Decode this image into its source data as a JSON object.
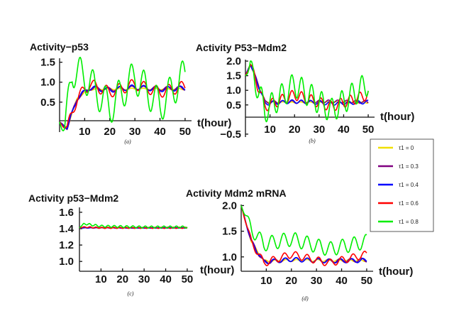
{
  "series_meta": [
    {
      "key": "t0",
      "label": "τ1 = 0",
      "color": "#f0e000"
    },
    {
      "key": "t03",
      "label": "τ1 = 0.3",
      "color": "#800080"
    },
    {
      "key": "t04",
      "label": "τ1 = 0.4",
      "color": "#0000ff"
    },
    {
      "key": "t06",
      "label": "τ1 = 0.6",
      "color": "#ff0000"
    },
    {
      "key": "t08",
      "label": "τ1 = 0.8",
      "color": "#00ee00"
    }
  ],
  "chart_data": [
    {
      "type": "line",
      "title": "Activity−p53",
      "caption": "(a)",
      "xlabel": "t(hour)",
      "xticks": [
        10,
        20,
        30,
        40,
        50
      ],
      "yticks": [
        0.5,
        1.0,
        1.5
      ],
      "ytick_labels": [
        "0.5",
        "1.0",
        "1.5"
      ],
      "xlim": [
        0,
        52
      ],
      "ylim": [
        -0.25,
        1.6
      ],
      "series": [
        {
          "name": "τ1 = 0",
          "x": [
            0,
            3,
            7,
            12,
            20,
            30,
            40,
            50
          ],
          "values": [
            0.0,
            -0.15,
            0.6,
            0.82,
            0.83,
            0.83,
            0.83,
            0.83
          ]
        },
        {
          "name": "τ1 = 0.3",
          "x": [
            0,
            3,
            7,
            12,
            20,
            30,
            40,
            50
          ],
          "values": [
            0.0,
            -0.15,
            0.6,
            0.85,
            0.82,
            0.86,
            0.84,
            0.85
          ]
        },
        {
          "name": "τ1 = 0.4",
          "x": [
            0,
            3,
            7,
            12,
            20,
            30,
            40,
            50
          ],
          "values": [
            0.0,
            -0.15,
            0.6,
            0.86,
            0.8,
            0.88,
            0.82,
            0.85
          ]
        },
        {
          "name": "τ1 = 0.6",
          "x": [
            0,
            3,
            7,
            12,
            20,
            30,
            40,
            50
          ],
          "values": [
            0.0,
            -0.15,
            0.6,
            0.95,
            0.75,
            0.95,
            0.75,
            0.9
          ]
        },
        {
          "name": "τ1 = 0.8",
          "x": [
            0,
            2,
            5,
            10,
            20,
            30,
            40,
            50
          ],
          "values": [
            0.0,
            -0.2,
            1.3,
            1.15,
            0.35,
            1.15,
            0.4,
            1.2
          ]
        }
      ]
    },
    {
      "type": "line",
      "title": "Activity P53−Mdm2",
      "caption": "(b)",
      "xlabel": "t(hour)",
      "xticks": [
        10,
        20,
        30,
        40,
        50
      ],
      "yticks": [
        -0.5,
        0.5,
        1.0,
        1.5,
        2.0
      ],
      "ytick_labels": [
        "−0.5",
        "0.5",
        "1.0",
        "1.5",
        "2.0"
      ],
      "xlim": [
        0,
        52
      ],
      "ylim": [
        -0.6,
        2.05
      ],
      "series": [
        {
          "name": "τ1 = 0",
          "x": [
            0,
            2,
            8,
            20,
            35,
            50
          ],
          "values": [
            1.5,
            1.9,
            0.6,
            0.58,
            0.6,
            0.58
          ]
        },
        {
          "name": "τ1 = 0.3",
          "x": [
            0,
            2,
            8,
            20,
            35,
            50
          ],
          "values": [
            1.5,
            1.9,
            0.6,
            0.6,
            0.62,
            0.6
          ]
        },
        {
          "name": "τ1 = 0.4",
          "x": [
            0,
            2,
            8,
            20,
            35,
            50
          ],
          "values": [
            1.5,
            1.9,
            0.55,
            0.62,
            0.55,
            0.6
          ]
        },
        {
          "name": "τ1 = 0.6",
          "x": [
            0,
            2,
            8,
            20,
            35,
            50
          ],
          "values": [
            1.5,
            1.9,
            0.45,
            0.85,
            0.45,
            0.85
          ]
        },
        {
          "name": "τ1 = 0.8",
          "x": [
            0,
            2,
            8,
            20,
            35,
            50
          ],
          "values": [
            1.5,
            1.85,
            0.3,
            1.2,
            0.3,
            1.25
          ]
        }
      ]
    },
    {
      "type": "line",
      "title": "Activity p53−Mdm2",
      "caption": "(c)",
      "xlabel": "",
      "xticks": [
        10,
        20,
        30,
        40,
        50
      ],
      "yticks": [
        1.0,
        1.2,
        1.4,
        1.6
      ],
      "ytick_labels": [
        "1.0",
        "1.2",
        "1.4",
        "1.6"
      ],
      "xlim": [
        0,
        52
      ],
      "ylim": [
        0.88,
        1.66
      ],
      "series": [
        {
          "name": "τ1 = 0",
          "x": [
            0,
            2,
            10,
            30,
            50
          ],
          "values": [
            1.41,
            1.41,
            1.41,
            1.41,
            1.41
          ]
        },
        {
          "name": "τ1 = 0.3",
          "x": [
            0,
            2,
            10,
            30,
            50
          ],
          "values": [
            1.41,
            1.41,
            1.41,
            1.41,
            1.41
          ]
        },
        {
          "name": "τ1 = 0.4",
          "x": [
            0,
            2,
            10,
            30,
            50
          ],
          "values": [
            1.41,
            1.41,
            1.41,
            1.41,
            1.41
          ]
        },
        {
          "name": "τ1 = 0.6",
          "x": [
            0,
            2,
            10,
            30,
            50
          ],
          "values": [
            1.41,
            1.42,
            1.41,
            1.41,
            1.41
          ]
        },
        {
          "name": "τ1 = 0.8",
          "x": [
            0,
            2,
            10,
            30,
            50
          ],
          "values": [
            1.41,
            1.46,
            1.43,
            1.42,
            1.42
          ]
        }
      ]
    },
    {
      "type": "line",
      "title": "Activity Mdm2 mRNA",
      "caption": "(d)",
      "xlabel": "t(hour)",
      "xticks": [
        10,
        20,
        30,
        40,
        50
      ],
      "yticks": [
        1.0,
        1.5,
        2.0
      ],
      "ytick_labels": [
        "1.0",
        "1.5",
        "2.0"
      ],
      "xlim": [
        0,
        52
      ],
      "ylim": [
        0.72,
        2.02
      ],
      "series": [
        {
          "name": "τ1 = 0",
          "x": [
            0,
            4,
            9,
            20,
            35,
            50
          ],
          "values": [
            2.0,
            1.3,
            0.92,
            0.93,
            0.93,
            0.93
          ]
        },
        {
          "name": "τ1 = 0.3",
          "x": [
            0,
            4,
            9,
            20,
            35,
            50
          ],
          "values": [
            2.0,
            1.3,
            0.9,
            0.95,
            0.92,
            0.94
          ]
        },
        {
          "name": "τ1 = 0.4",
          "x": [
            0,
            4,
            9,
            20,
            35,
            50
          ],
          "values": [
            2.0,
            1.3,
            0.9,
            0.95,
            0.92,
            0.93
          ]
        },
        {
          "name": "τ1 = 0.6",
          "x": [
            0,
            4,
            9,
            20,
            35,
            50
          ],
          "values": [
            2.0,
            1.3,
            0.88,
            1.05,
            0.88,
            1.05
          ]
        },
        {
          "name": "τ1 = 0.8",
          "x": [
            0,
            4,
            9,
            20,
            35,
            50
          ],
          "values": [
            2.0,
            1.55,
            1.25,
            1.35,
            1.15,
            1.3
          ]
        }
      ]
    }
  ]
}
